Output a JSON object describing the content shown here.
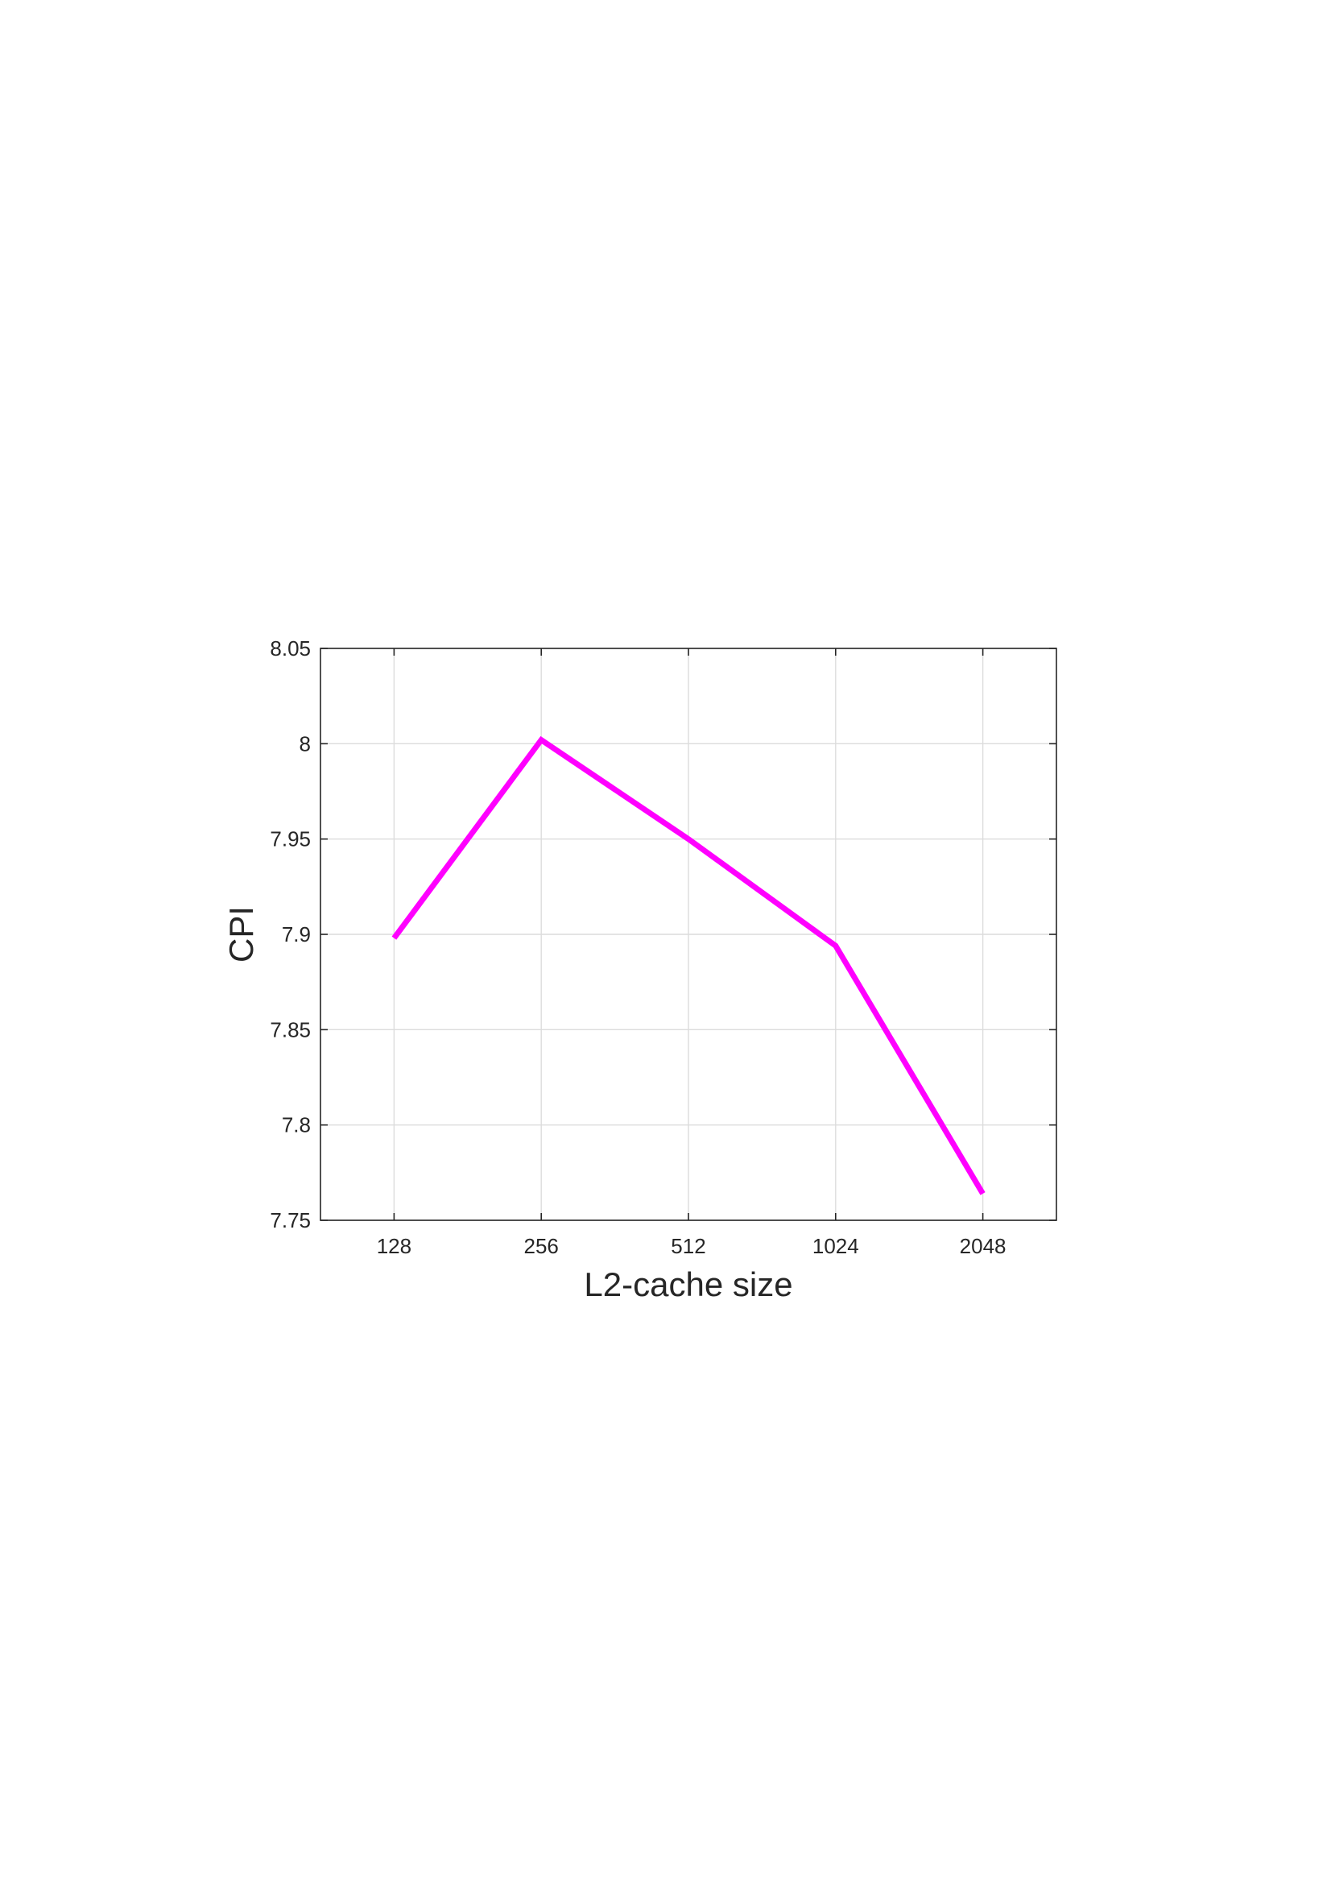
{
  "chart_data": {
    "type": "line",
    "title": "",
    "xlabel": "L2-cache size",
    "ylabel": "CPI",
    "categories": [
      "128",
      "256",
      "512",
      "1024",
      "2048"
    ],
    "series": [
      {
        "values": [
          7.898,
          8.002,
          7.95,
          7.894,
          7.764
        ],
        "color": "#ff00ff"
      }
    ],
    "ylim": [
      7.75,
      8.05
    ],
    "yticks": [
      7.75,
      7.8,
      7.85,
      7.9,
      7.95,
      8,
      8.05
    ],
    "ytick_labels": [
      "7.75",
      "7.8",
      "7.85",
      "7.9",
      "7.95",
      "8",
      "8.05"
    ],
    "grid": true,
    "legend": "none"
  }
}
